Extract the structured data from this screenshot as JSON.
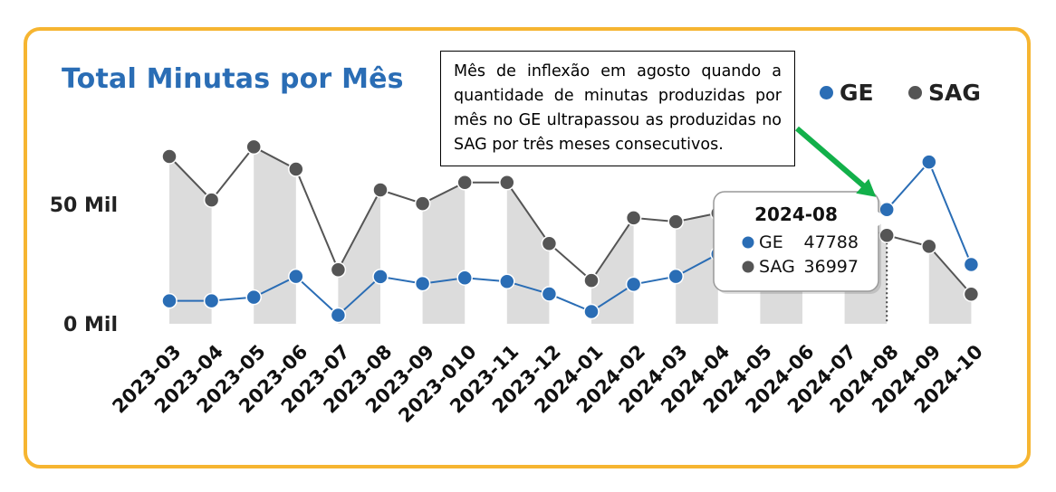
{
  "chart_data": {
    "type": "line",
    "title": "Total Minutas por Mês",
    "categories": [
      "2023-03",
      "2023-04",
      "2023-05",
      "2023-06",
      "2023-07",
      "2023-08",
      "2023-09",
      "2023-010",
      "2023-11",
      "2023-12",
      "2024-01",
      "2024-02",
      "2024-03",
      "2024-04",
      "2024-05",
      "2024-06",
      "2024-07",
      "2024-08",
      "2024-09",
      "2024-10"
    ],
    "series": [
      {
        "name": "GE",
        "color": "#2a6db5",
        "values": [
          9600,
          9600,
          11100,
          19800,
          3600,
          19700,
          16800,
          19200,
          17700,
          12500,
          5100,
          16500,
          19800,
          29200,
          36000,
          38000,
          40500,
          47788,
          67700,
          24800
        ]
      },
      {
        "name": "SAG",
        "color": "#555555",
        "values": [
          70000,
          51800,
          74000,
          64700,
          22600,
          56000,
          50300,
          59100,
          59100,
          33600,
          18100,
          44300,
          42700,
          46300,
          45500,
          44000,
          42000,
          36997,
          32400,
          12400
        ]
      }
    ],
    "yticks": [
      {
        "value": 0,
        "label": "0 Mil"
      },
      {
        "value": 50000,
        "label": "50 Mil"
      }
    ],
    "ylim": [
      0,
      80000
    ],
    "grid": false,
    "legend": "top-right",
    "shaded_columns": "alternating",
    "tooltip": {
      "category": "2024-08",
      "rows": [
        {
          "name": "GE",
          "value": "47788"
        },
        {
          "name": "SAG",
          "value": "36997"
        }
      ]
    },
    "annotation": {
      "text": "Mês de inflexão em agosto quando a quantidade de minutas produzidas por mês no GE ultrapassou as produzidas no SAG por três meses consecutivos.",
      "arrow_color": "#12b04a",
      "target_category": "2024-08"
    }
  }
}
